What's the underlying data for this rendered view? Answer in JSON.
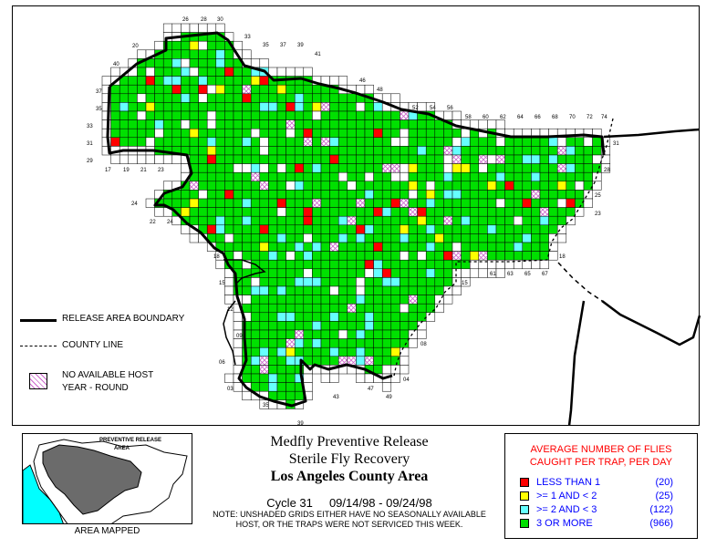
{
  "title": {
    "line1": "Medfly Preventive Release",
    "line2": "Sterile Fly Recovery",
    "line3": "Los Angeles County Area",
    "cycle": "Cycle 31",
    "dates": "09/14/98 - 09/24/98"
  },
  "note": {
    "line1": "NOTE: UNSHADED GRIDS EITHER HAVE NO SEASONALLY AVAILABLE",
    "line2": "HOST, OR THE TRAPS WERE NOT SERVICED THIS WEEK."
  },
  "legend": {
    "boundary": "RELEASE AREA BOUNDARY",
    "county_line": "COUNTY LINE",
    "no_host_line1": "NO AVAILABLE HOST",
    "no_host_line2": "YEAR - ROUND"
  },
  "inset": {
    "label_line1": "PREVENTIVE RELEASE",
    "label_line2": "AREA",
    "caption": "AREA MAPPED"
  },
  "counts": {
    "title_line1": "AVERAGE NUMBER OF FLIES",
    "title_line2": "CAUGHT PER TRAP, PER DAY",
    "rows": [
      {
        "label": "LESS THAN 1",
        "count": "(20)",
        "color": "#ff0000"
      },
      {
        "label": ">= 1 AND < 2",
        "count": "(25)",
        "color": "#ffff00"
      },
      {
        "label": ">= 2 AND < 3",
        "count": "(122)",
        "color": "#66ffff"
      },
      {
        "label": "3 OR MORE",
        "count": "(966)",
        "color": "#00e000"
      }
    ]
  },
  "colors": {
    "green": "#00e000",
    "yellow": "#ffff00",
    "cyan": "#66ffff",
    "red": "#ff0000",
    "hatch": "#cc66cc",
    "land_gray": "#6b6b6b",
    "water": "#00ffff"
  },
  "grid_labels": {
    "top": [
      "26",
      "28",
      "30",
      "33",
      "35",
      "37",
      "39",
      "41",
      "46",
      "48",
      "52",
      "54",
      "56",
      "58",
      "60",
      "62",
      "64",
      "66",
      "68",
      "70",
      "72",
      "74",
      "20",
      "40"
    ],
    "left": [
      "37",
      "35",
      "33",
      "31",
      "29",
      "24",
      "18",
      "15",
      "12",
      "09",
      "06",
      "03"
    ],
    "bottom_left": [
      "17",
      "19",
      "21",
      "23",
      "22",
      "24"
    ],
    "right": [
      "31",
      "28",
      "25",
      "23",
      "18"
    ],
    "bottom": [
      "61",
      "63",
      "65",
      "67",
      "15",
      "08",
      "04",
      "47",
      "49",
      "43",
      "39",
      "35"
    ]
  }
}
